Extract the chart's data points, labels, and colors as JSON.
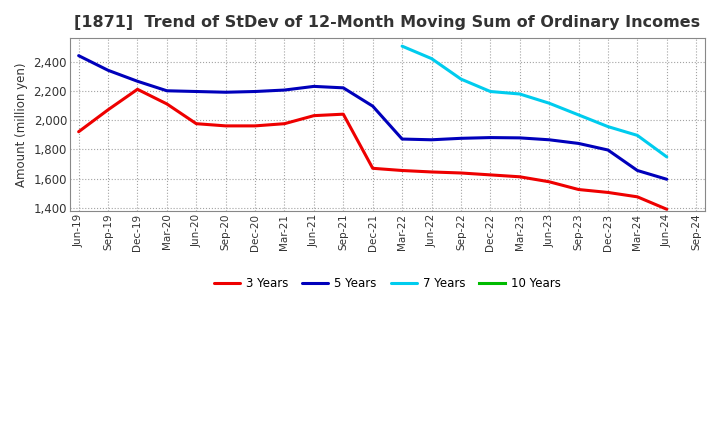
{
  "title": "[1871]  Trend of StDev of 12-Month Moving Sum of Ordinary Incomes",
  "ylabel": "Amount (million yen)",
  "background_color": "#ffffff",
  "plot_bg_color": "#ffffff",
  "grid_color": "#999999",
  "title_fontsize": 11.5,
  "ylim": [
    1380,
    2560
  ],
  "yticks": [
    1400,
    1600,
    1800,
    2000,
    2200,
    2400
  ],
  "x_labels": [
    "Jun-19",
    "Sep-19",
    "Dec-19",
    "Mar-20",
    "Jun-20",
    "Sep-20",
    "Dec-20",
    "Mar-21",
    "Jun-21",
    "Sep-21",
    "Dec-21",
    "Mar-22",
    "Jun-22",
    "Sep-22",
    "Dec-22",
    "Mar-23",
    "Jun-23",
    "Sep-23",
    "Dec-23",
    "Mar-24",
    "Jun-24",
    "Sep-24"
  ],
  "series": {
    "3 Years": {
      "color": "#ee0000",
      "values": [
        1920,
        2070,
        2210,
        2110,
        1975,
        1960,
        1960,
        1975,
        2030,
        2040,
        1670,
        1655,
        1645,
        1638,
        1625,
        1612,
        1578,
        1525,
        1505,
        1475,
        1390,
        null
      ]
    },
    "5 Years": {
      "color": "#0000bb",
      "values": [
        2440,
        2340,
        2265,
        2200,
        2195,
        2190,
        2195,
        2205,
        2230,
        2220,
        2095,
        1870,
        1865,
        1875,
        1880,
        1878,
        1865,
        1840,
        1795,
        1655,
        1595,
        null
      ]
    },
    "7 Years": {
      "color": "#00ccee",
      "values": [
        null,
        null,
        null,
        null,
        null,
        null,
        null,
        null,
        null,
        null,
        null,
        2505,
        2420,
        2280,
        2195,
        2178,
        2115,
        2035,
        1955,
        1895,
        1748,
        null
      ]
    },
    "10 Years": {
      "color": "#00bb00",
      "values": [
        null,
        null,
        null,
        null,
        null,
        null,
        null,
        null,
        null,
        null,
        null,
        null,
        null,
        null,
        null,
        null,
        null,
        null,
        null,
        null,
        null,
        null
      ]
    }
  }
}
